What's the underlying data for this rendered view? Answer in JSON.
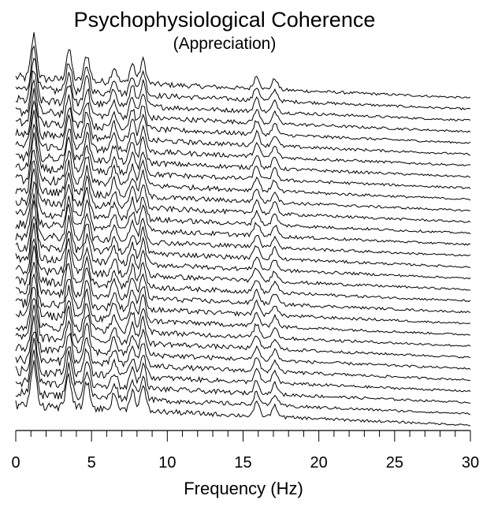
{
  "chart_data": {
    "type": "line",
    "title": "Psychophysiological Coherence",
    "subtitle": "(Appreciation)",
    "xlabel": "Frequency (Hz)",
    "ylabel": "",
    "xlim": [
      0,
      30
    ],
    "x_ticks": [
      0,
      5,
      10,
      15,
      20,
      25,
      30
    ],
    "x_tick_labels": [
      "0",
      "5",
      "10",
      "15",
      "20",
      "25",
      "30"
    ],
    "minor_tick_step": 1,
    "grid": false,
    "legend": "none",
    "line_color": "#000000",
    "background_color": "#ffffff",
    "series_count": 30,
    "series_style": "stacked waterfall spectra, no y-axis",
    "peak_frequencies_hz": [
      1.2,
      3.5,
      4.7,
      6.5,
      7.7,
      8.4,
      15.9,
      17.1
    ],
    "peak_amplitudes": [
      1.0,
      0.7,
      0.6,
      0.35,
      0.45,
      0.55,
      0.3,
      0.25
    ]
  }
}
